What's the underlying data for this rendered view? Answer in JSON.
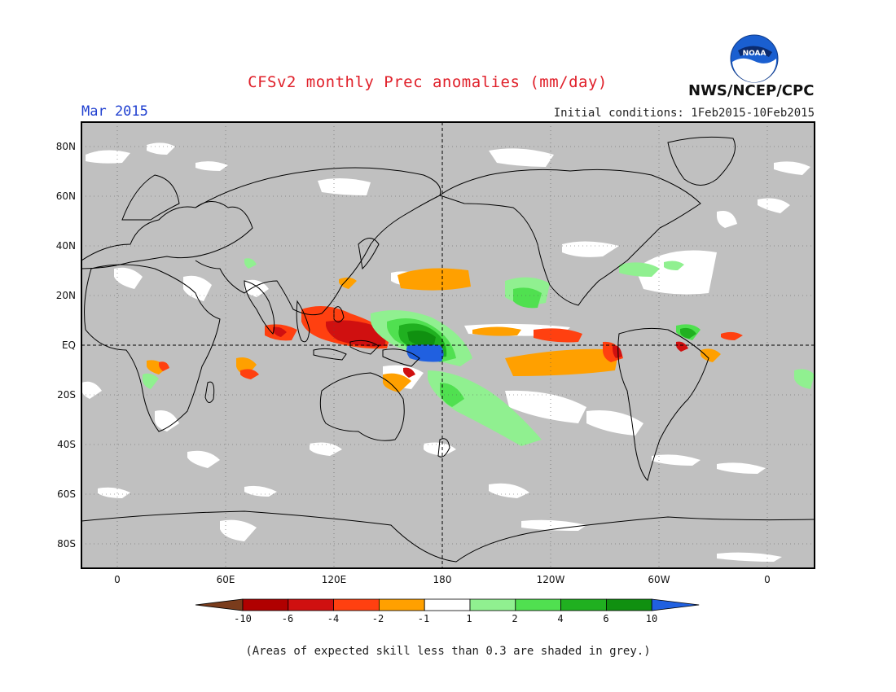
{
  "header": {
    "title": "CFSv2 monthly Prec anomalies (mm/day)",
    "month": "Mar 2015",
    "initial_conditions": "Initial conditions: 1Feb2015-10Feb2015",
    "agency": "NWS/NCEP/CPC",
    "logo_text": "NOAA"
  },
  "map": {
    "lat_labels": [
      "80N",
      "60N",
      "40N",
      "20N",
      "EQ",
      "20S",
      "40S",
      "60S",
      "80S"
    ],
    "lon_labels": [
      "0",
      "60E",
      "120E",
      "180",
      "120W",
      "60W",
      "0"
    ],
    "background_color": "#c0c0c0",
    "skill_mask_note": "grey = skill < 0.3"
  },
  "legend": {
    "tick_labels": [
      "-10",
      "-6",
      "-4",
      "-2",
      "-1",
      "1",
      "2",
      "4",
      "6",
      "10"
    ],
    "colors": [
      "#7a3c1c",
      "#b00000",
      "#d01010",
      "#ff4010",
      "#ffa000",
      "#ffffff",
      "#90f090",
      "#50e050",
      "#20b020",
      "#109010",
      "#2060e0"
    ]
  },
  "footnote": "(Areas of expected skill less than 0.3 are shaded in grey.)"
}
